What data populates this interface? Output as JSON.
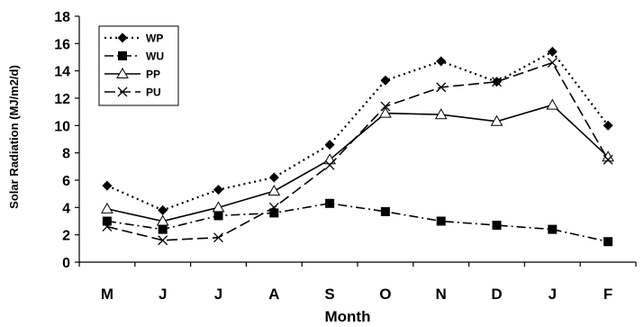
{
  "chart_data": {
    "type": "line",
    "title": "",
    "xlabel": "Month",
    "ylabel": "Solar Radiation (MJ/m2/d)",
    "categories": [
      "M",
      "J",
      "J",
      "A",
      "S",
      "O",
      "N",
      "D",
      "J",
      "F"
    ],
    "ylim": [
      0,
      18
    ],
    "yticks": [
      0,
      2,
      4,
      6,
      8,
      10,
      12,
      14,
      16,
      18
    ],
    "grid": false,
    "legend_position": "top-left",
    "series": [
      {
        "name": "WP",
        "marker": "diamond",
        "line_style": "dotted",
        "values": [
          5.6,
          3.8,
          5.3,
          6.2,
          8.6,
          13.3,
          14.7,
          13.2,
          15.4,
          10.0
        ]
      },
      {
        "name": "WU",
        "marker": "square",
        "line_style": "dash-dot",
        "values": [
          3.0,
          2.4,
          3.4,
          3.6,
          4.3,
          3.7,
          3.0,
          2.7,
          2.4,
          1.5
        ]
      },
      {
        "name": "PP",
        "marker": "open-triangle",
        "line_style": "solid",
        "values": [
          3.9,
          3.0,
          4.0,
          5.2,
          7.5,
          10.9,
          10.8,
          10.3,
          11.5,
          7.7
        ]
      },
      {
        "name": "PU",
        "marker": "x",
        "line_style": "dashed",
        "values": [
          2.6,
          1.6,
          1.8,
          4.0,
          7.1,
          11.4,
          12.8,
          13.2,
          14.6,
          7.5
        ]
      }
    ]
  }
}
